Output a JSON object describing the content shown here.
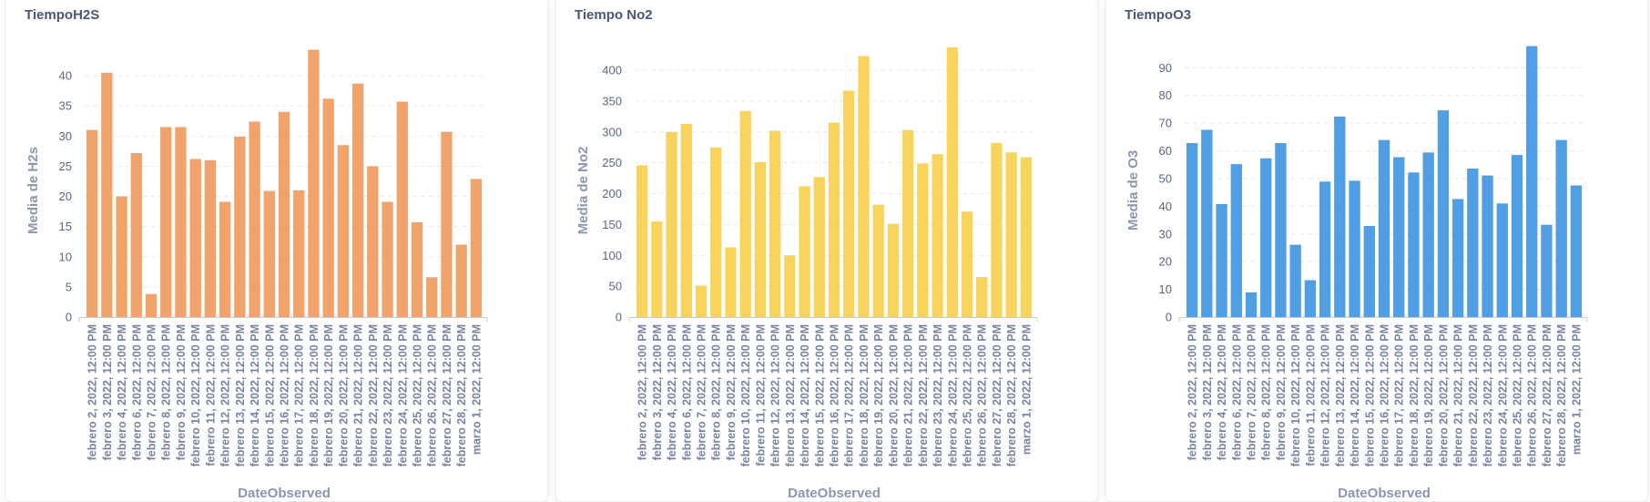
{
  "charts": [
    {
      "title": "TiempoH2S",
      "bar_color": "#f0a46c",
      "chart_data": {
        "type": "bar",
        "title": "TiempoH2S",
        "xlabel": "DateObserved",
        "ylabel": "Media de H2s",
        "ylim": [
          0,
          45
        ],
        "yticks": [
          0,
          5,
          10,
          15,
          20,
          25,
          30,
          35,
          40
        ],
        "grid": true,
        "categories": [
          "febrero 2, 2022, 12:00 PM",
          "febrero 3, 2022, 12:00 PM",
          "febrero 4, 2022, 12:00 PM",
          "febrero 6, 2022, 12:00 PM",
          "febrero 7, 2022, 12:00 PM",
          "febrero 8, 2022, 12:00 PM",
          "febrero 9, 2022, 12:00 PM",
          "febrero 10, 2022, 12:00 PM",
          "febrero 11, 2022, 12:00 PM",
          "febrero 12, 2022, 12:00 PM",
          "febrero 13, 2022, 12:00 PM",
          "febrero 14, 2022, 12:00 PM",
          "febrero 15, 2022, 12:00 PM",
          "febrero 16, 2022, 12:00 PM",
          "febrero 17, 2022, 12:00 PM",
          "febrero 18, 2022, 12:00 PM",
          "febrero 19, 2022, 12:00 PM",
          "febrero 20, 2022, 12:00 PM",
          "febrero 21, 2022, 12:00 PM",
          "febrero 22, 2022, 12:00 PM",
          "febrero 23, 2022, 12:00 PM",
          "febrero 24, 2022, 12:00 PM",
          "febrero 25, 2022, 12:00 PM",
          "febrero 26, 2022, 12:00 PM",
          "febrero 27, 2022, 12:00 PM",
          "febrero 28, 2022, 12:00 PM",
          "marzo 1, 2022, 12:00 PM"
        ],
        "values": [
          31.0,
          40.5,
          20.0,
          27.2,
          3.8,
          31.5,
          31.5,
          26.2,
          26.0,
          19.1,
          29.9,
          32.4,
          20.9,
          34.0,
          21.0,
          44.3,
          36.2,
          28.5,
          38.7,
          25.0,
          19.1,
          35.7,
          15.7,
          6.6,
          30.7,
          12.0,
          22.9
        ]
      }
    },
    {
      "title": "Tiempo No2",
      "bar_color": "#f9d45c",
      "chart_data": {
        "type": "bar",
        "title": "Tiempo No2",
        "xlabel": "DateObserved",
        "ylabel": "Media de No2",
        "ylim": [
          0,
          440
        ],
        "yticks": [
          0,
          50,
          100,
          150,
          200,
          250,
          300,
          350,
          400
        ],
        "grid": true,
        "categories": [
          "febrero 2, 2022, 12:00 PM",
          "febrero 3, 2022, 12:00 PM",
          "febrero 4, 2022, 12:00 PM",
          "febrero 6, 2022, 12:00 PM",
          "febrero 7, 2022, 12:00 PM",
          "febrero 8, 2022, 12:00 PM",
          "febrero 9, 2022, 12:00 PM",
          "febrero 10, 2022, 12:00 PM",
          "febrero 11, 2022, 12:00 PM",
          "febrero 12, 2022, 12:00 PM",
          "febrero 13, 2022, 12:00 PM",
          "febrero 14, 2022, 12:00 PM",
          "febrero 15, 2022, 12:00 PM",
          "febrero 16, 2022, 12:00 PM",
          "febrero 17, 2022, 12:00 PM",
          "febrero 18, 2022, 12:00 PM",
          "febrero 19, 2022, 12:00 PM",
          "febrero 20, 2022, 12:00 PM",
          "febrero 21, 2022, 12:00 PM",
          "febrero 22, 2022, 12:00 PM",
          "febrero 23, 2022, 12:00 PM",
          "febrero 24, 2022, 12:00 PM",
          "febrero 25, 2022, 12:00 PM",
          "febrero 26, 2022, 12:00 PM",
          "febrero 27, 2022, 12:00 PM",
          "febrero 28, 2022, 12:00 PM",
          "marzo 1, 2022, 12:00 PM"
        ],
        "values": [
          246,
          155,
          300,
          313,
          51,
          275,
          113,
          334,
          251,
          302,
          100,
          212,
          227,
          315,
          367,
          423,
          182,
          151,
          303,
          249,
          264,
          437,
          171,
          65,
          282,
          267,
          259
        ]
      }
    },
    {
      "title": "TiempoO3",
      "bar_color": "#509ee3",
      "chart_data": {
        "type": "bar",
        "title": "TiempoO3",
        "xlabel": "DateObserved",
        "ylabel": "Media de O3",
        "ylim": [
          0,
          98
        ],
        "yticks": [
          0,
          10,
          20,
          30,
          40,
          50,
          60,
          70,
          80,
          90
        ],
        "grid": true,
        "categories": [
          "febrero 2, 2022, 12:00 PM",
          "febrero 3, 2022, 12:00 PM",
          "febrero 4, 2022, 12:00 PM",
          "febrero 6, 2022, 12:00 PM",
          "febrero 7, 2022, 12:00 PM",
          "febrero 8, 2022, 12:00 PM",
          "febrero 9, 2022, 12:00 PM",
          "febrero 10, 2022, 12:00 PM",
          "febrero 11, 2022, 12:00 PM",
          "febrero 12, 2022, 12:00 PM",
          "febrero 13, 2022, 12:00 PM",
          "febrero 14, 2022, 12:00 PM",
          "febrero 15, 2022, 12:00 PM",
          "febrero 16, 2022, 12:00 PM",
          "febrero 17, 2022, 12:00 PM",
          "febrero 18, 2022, 12:00 PM",
          "febrero 19, 2022, 12:00 PM",
          "febrero 20, 2022, 12:00 PM",
          "febrero 21, 2022, 12:00 PM",
          "febrero 22, 2022, 12:00 PM",
          "febrero 23, 2022, 12:00 PM",
          "febrero 24, 2022, 12:00 PM",
          "febrero 25, 2022, 12:00 PM",
          "febrero 26, 2022, 12:00 PM",
          "febrero 27, 2022, 12:00 PM",
          "febrero 28, 2022, 12:00 PM",
          "marzo 1, 2022, 12:00 PM"
        ],
        "values": [
          62.8,
          67.6,
          40.8,
          55.2,
          8.9,
          57.3,
          62.8,
          26.1,
          13.3,
          48.9,
          72.4,
          49.2,
          32.9,
          63.9,
          57.7,
          52.2,
          59.4,
          74.6,
          42.6,
          53.6,
          51.1,
          41.0,
          58.5,
          97.8,
          33.3,
          63.9,
          47.5
        ]
      }
    }
  ]
}
